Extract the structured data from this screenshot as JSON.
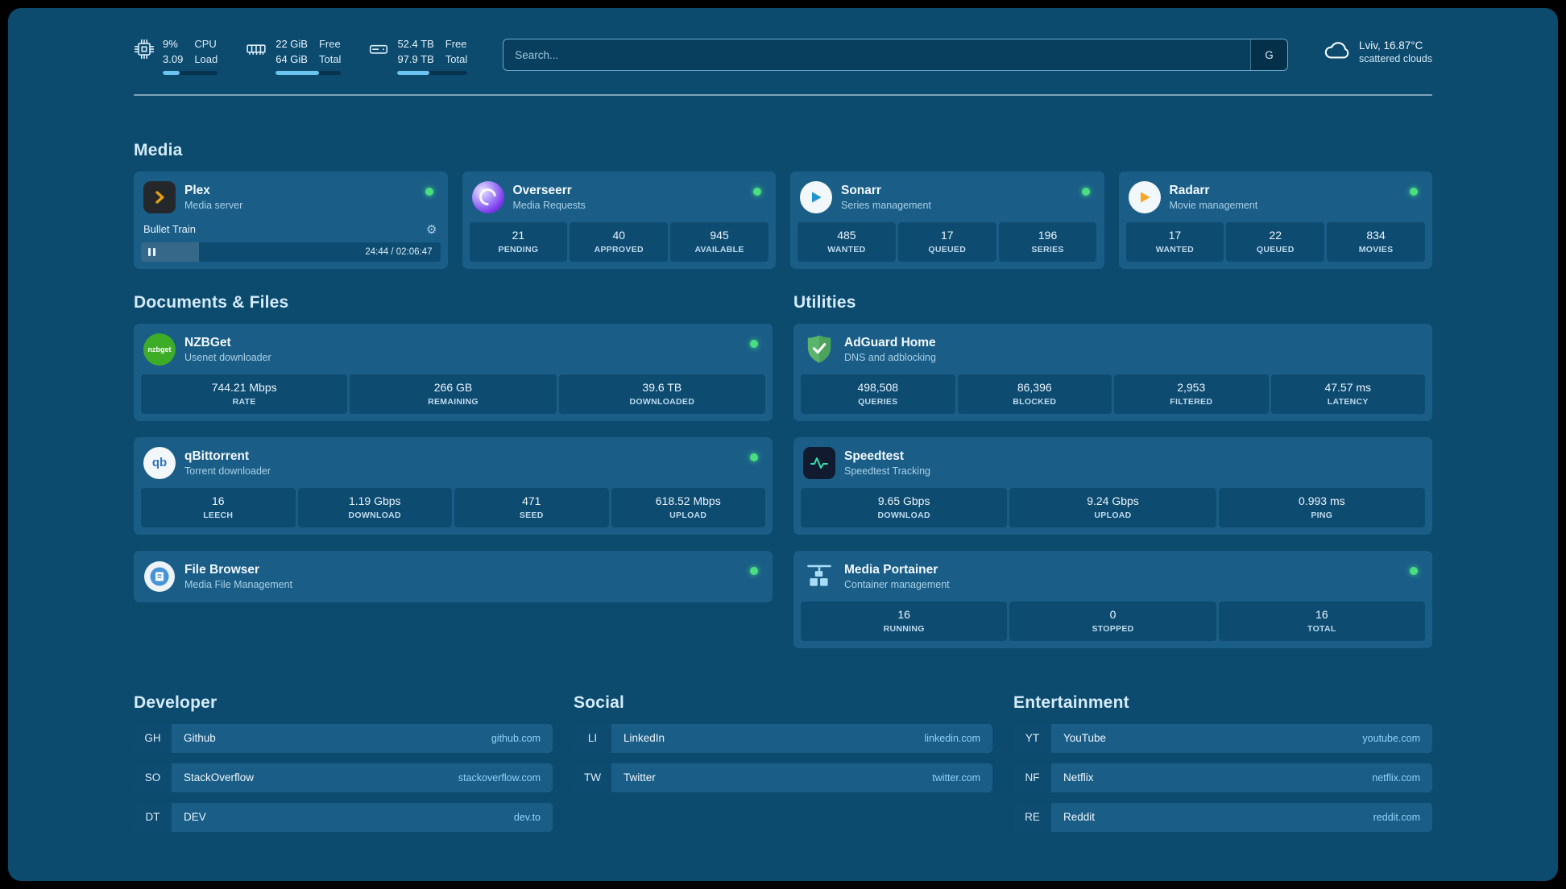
{
  "topbar": {
    "cpu": {
      "value_top": "9%",
      "value_bottom": "3.09",
      "label_top": "CPU",
      "label_bottom": "Load",
      "progress_pct": 31
    },
    "memory": {
      "value_top": "22 GiB",
      "value_bottom": "64 GiB",
      "label_top": "Free",
      "label_bottom": "Total",
      "progress_pct": 66
    },
    "disk": {
      "value_top": "52.4 TB",
      "value_bottom": "97.9 TB",
      "label_top": "Free",
      "label_bottom": "Total",
      "progress_pct": 46
    },
    "search": {
      "placeholder": "Search...",
      "provider_label": "G"
    },
    "weather": {
      "location": "Lviv, 16.87°C",
      "condition": "scattered clouds"
    }
  },
  "groups": {
    "media": {
      "title": "Media",
      "services": [
        {
          "name": "Plex",
          "subtitle": "Media server",
          "status": "online",
          "now_playing": {
            "title": "Bullet Train",
            "time": "24:44 / 02:06:47",
            "progress_pct": 19.5
          }
        },
        {
          "name": "Overseerr",
          "subtitle": "Media Requests",
          "status": "online",
          "stats": [
            {
              "value": "21",
              "label": "PENDING"
            },
            {
              "value": "40",
              "label": "APPROVED"
            },
            {
              "value": "945",
              "label": "AVAILABLE"
            }
          ]
        },
        {
          "name": "Sonarr",
          "subtitle": "Series management",
          "status": "online",
          "stats": [
            {
              "value": "485",
              "label": "WANTED"
            },
            {
              "value": "17",
              "label": "QUEUED"
            },
            {
              "value": "196",
              "label": "SERIES"
            }
          ]
        },
        {
          "name": "Radarr",
          "subtitle": "Movie management",
          "status": "online",
          "stats": [
            {
              "value": "17",
              "label": "WANTED"
            },
            {
              "value": "22",
              "label": "QUEUED"
            },
            {
              "value": "834",
              "label": "MOVIES"
            }
          ]
        }
      ]
    },
    "documents": {
      "title": "Documents & Files",
      "services": [
        {
          "name": "NZBGet",
          "subtitle": "Usenet downloader",
          "status": "online",
          "stats": [
            {
              "value": "744.21 Mbps",
              "label": "RATE"
            },
            {
              "value": "266 GB",
              "label": "REMAINING"
            },
            {
              "value": "39.6 TB",
              "label": "DOWNLOADED"
            }
          ]
        },
        {
          "name": "qBittorrent",
          "subtitle": "Torrent downloader",
          "status": "online",
          "stats": [
            {
              "value": "16",
              "label": "LEECH"
            },
            {
              "value": "1.19 Gbps",
              "label": "DOWNLOAD"
            },
            {
              "value": "471",
              "label": "SEED"
            },
            {
              "value": "618.52 Mbps",
              "label": "UPLOAD"
            }
          ]
        },
        {
          "name": "File Browser",
          "subtitle": "Media File Management",
          "status": "online"
        }
      ]
    },
    "utilities": {
      "title": "Utilities",
      "services": [
        {
          "name": "AdGuard Home",
          "subtitle": "DNS and adblocking",
          "stats": [
            {
              "value": "498,508",
              "label": "QUERIES"
            },
            {
              "value": "86,396",
              "label": "BLOCKED"
            },
            {
              "value": "2,953",
              "label": "FILTERED"
            },
            {
              "value": "47.57 ms",
              "label": "LATENCY"
            }
          ]
        },
        {
          "name": "Speedtest",
          "subtitle": "Speedtest Tracking",
          "stats": [
            {
              "value": "9.65 Gbps",
              "label": "DOWNLOAD"
            },
            {
              "value": "9.24 Gbps",
              "label": "UPLOAD"
            },
            {
              "value": "0.993 ms",
              "label": "PING"
            }
          ]
        },
        {
          "name": "Media Portainer",
          "subtitle": "Container management",
          "status": "online",
          "stats": [
            {
              "value": "16",
              "label": "RUNNING"
            },
            {
              "value": "0",
              "label": "STOPPED"
            },
            {
              "value": "16",
              "label": "TOTAL"
            }
          ]
        }
      ]
    }
  },
  "bookmarks": [
    {
      "title": "Developer",
      "items": [
        {
          "abbr": "GH",
          "name": "Github",
          "url": "github.com"
        },
        {
          "abbr": "SO",
          "name": "StackOverflow",
          "url": "stackoverflow.com"
        },
        {
          "abbr": "DT",
          "name": "DEV",
          "url": "dev.to"
        }
      ]
    },
    {
      "title": "Social",
      "items": [
        {
          "abbr": "LI",
          "name": "LinkedIn",
          "url": "linkedin.com"
        },
        {
          "abbr": "TW",
          "name": "Twitter",
          "url": "twitter.com"
        }
      ]
    },
    {
      "title": "Entertainment",
      "items": [
        {
          "abbr": "YT",
          "name": "YouTube",
          "url": "youtube.com"
        },
        {
          "abbr": "NF",
          "name": "Netflix",
          "url": "netflix.com"
        },
        {
          "abbr": "RE",
          "name": "Reddit",
          "url": "reddit.com"
        }
      ]
    }
  ],
  "icon_labels": {
    "nzbget": "nzbget",
    "qbittorrent": "qb",
    "gear": "⚙"
  },
  "colors": {
    "background": "#0c4a6e",
    "card": "#1a5e87",
    "stat_block": "#0e4b71",
    "status_online": "#4ade80",
    "link_accent": "#8fd3f8",
    "progress_fill": "#6ac4ef"
  }
}
